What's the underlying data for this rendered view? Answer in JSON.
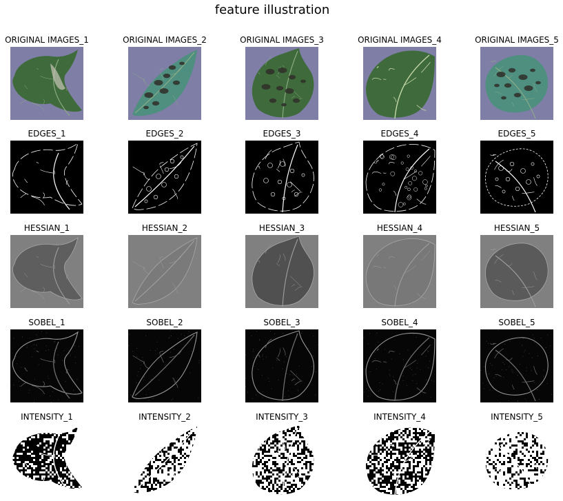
{
  "figure": {
    "title": "feature illustration"
  },
  "rows": [
    {
      "kind": "original",
      "labels": [
        "ORIGINAL IMAGES_1",
        "ORIGINAL IMAGES_2",
        "ORIGINAL IMAGES_3",
        "ORIGINAL IMAGES_4",
        "ORIGINAL IMAGES_5"
      ]
    },
    {
      "kind": "edges",
      "labels": [
        "EDGES_1",
        "EDGES_2",
        "EDGES_3",
        "EDGES_4",
        "EDGES_5"
      ]
    },
    {
      "kind": "hessian",
      "labels": [
        "HESSIAN_1",
        "HESSIAN_2",
        "HESSIAN_3",
        "HESSIAN_4",
        "HESSIAN_5"
      ]
    },
    {
      "kind": "sobel",
      "labels": [
        "SOBEL_1",
        "SOBEL_2",
        "SOBEL_3",
        "SOBEL_4",
        "SOBEL_5"
      ]
    },
    {
      "kind": "intensity",
      "labels": [
        "INTENSITY_1",
        "INTENSITY_2",
        "INTENSITY_3",
        "INTENSITY_4",
        "INTENSITY_5"
      ]
    }
  ],
  "colors": {
    "background_purple": "#7f7ea6",
    "leaf_dark_green": "#3f6b3c",
    "leaf_teal": "#4f8f80",
    "spot_dark": "#2f2f28",
    "hessian_bg": "#808080",
    "hessian_leaf": "#5e5e5e",
    "black": "#000000",
    "white": "#ffffff"
  }
}
